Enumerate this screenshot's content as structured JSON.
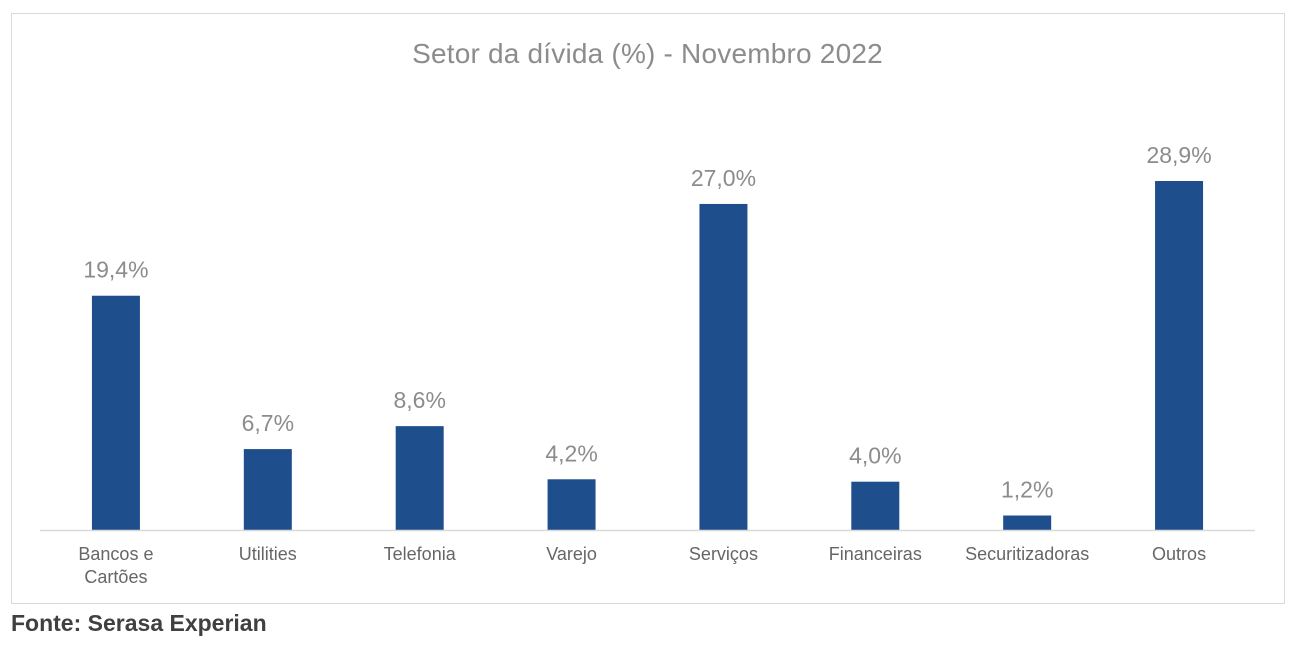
{
  "chart_data": {
    "type": "bar",
    "title": "Setor da dívida (%) - Novembro 2022",
    "xlabel": "",
    "ylabel": "",
    "categories": [
      [
        "Bancos e",
        "Cartões"
      ],
      [
        "Utilities"
      ],
      [
        "Telefonia"
      ],
      [
        "Varejo"
      ],
      [
        "Serviços"
      ],
      [
        "Financeiras"
      ],
      [
        "Securitizadoras"
      ],
      [
        "Outros"
      ]
    ],
    "values": [
      19.4,
      6.7,
      8.6,
      4.2,
      27.0,
      4.0,
      1.2,
      28.9
    ],
    "value_labels": [
      "19,4%",
      "6,7%",
      "8,6%",
      "4,2%",
      "27,0%",
      "4,0%",
      "1,2%",
      "28,9%"
    ],
    "ylim": [
      0,
      28.9
    ],
    "grid": false,
    "legend": "none",
    "bar_color": "#1f4e8c",
    "axis_color": "#d9d9d9"
  },
  "source": "Fonte: Serasa Experian"
}
